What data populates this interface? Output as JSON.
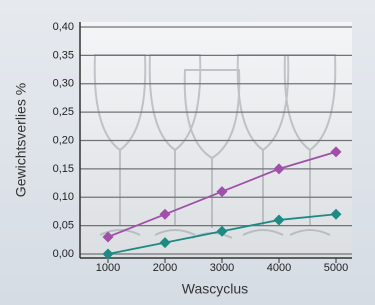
{
  "chart_data": {
    "type": "line",
    "x_label": "Wascyclus",
    "y_label": "Gewichtsverlies %",
    "categories": [
      "1000",
      "2000",
      "3000",
      "4000",
      "5000"
    ],
    "series": [
      {
        "color": "#a050a8",
        "values": [
          0.03,
          0.07,
          0.11,
          0.15,
          0.18
        ]
      },
      {
        "color": "#1e8a84",
        "values": [
          0.0,
          0.02,
          0.04,
          0.06,
          0.07
        ]
      }
    ],
    "ylim": [
      0,
      0.4
    ],
    "yticks": [
      {
        "value": 0,
        "label": "0,00"
      },
      {
        "value": 0.05,
        "label": "0,05"
      },
      {
        "value": 0.1,
        "label": "0,10"
      },
      {
        "value": 0.15,
        "label": "0,15"
      },
      {
        "value": 0.2,
        "label": "0,20"
      },
      {
        "value": 0.25,
        "label": "0,25"
      },
      {
        "value": 0.3,
        "label": "0,30"
      },
      {
        "value": 0.35,
        "label": "0,35"
      },
      {
        "value": 0.4,
        "label": "0,40"
      }
    ],
    "grid": true
  }
}
